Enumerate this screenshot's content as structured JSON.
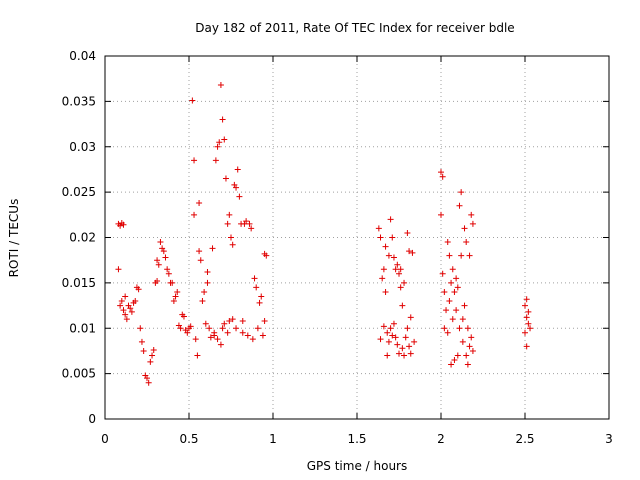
{
  "chart_data": {
    "type": "scatter",
    "title": "Day 182 of 2011, Rate Of TEC Index for receiver bdle",
    "xlabel": "GPS time / hours",
    "ylabel": "ROTI / TECUs",
    "xlim": [
      0,
      3
    ],
    "ylim": [
      0,
      0.04
    ],
    "x_ticks": [
      "0",
      "0.5",
      "1",
      "1.5",
      "2",
      "2.5",
      "3"
    ],
    "y_ticks": [
      "0",
      "0.005",
      "0.01",
      "0.015",
      "0.02",
      "0.025",
      "0.03",
      "0.035",
      "0.04"
    ],
    "x_tick_values": [
      0,
      0.5,
      1,
      1.5,
      2,
      2.5,
      3
    ],
    "y_tick_values": [
      0,
      0.005,
      0.01,
      0.015,
      0.02,
      0.025,
      0.03,
      0.035,
      0.04
    ],
    "grid": true,
    "marker": "+",
    "color": "#e00000",
    "series": [
      {
        "name": "ROTI",
        "points": [
          [
            0.08,
            0.0165
          ],
          [
            0.08,
            0.0215
          ],
          [
            0.09,
            0.0213
          ],
          [
            0.1,
            0.0216
          ],
          [
            0.11,
            0.0214
          ],
          [
            0.09,
            0.0125
          ],
          [
            0.1,
            0.013
          ],
          [
            0.11,
            0.012
          ],
          [
            0.12,
            0.0115
          ],
          [
            0.12,
            0.0135
          ],
          [
            0.13,
            0.011
          ],
          [
            0.14,
            0.0125
          ],
          [
            0.15,
            0.0122
          ],
          [
            0.16,
            0.0118
          ],
          [
            0.17,
            0.0128
          ],
          [
            0.18,
            0.013
          ],
          [
            0.19,
            0.0145
          ],
          [
            0.2,
            0.0143
          ],
          [
            0.21,
            0.01
          ],
          [
            0.22,
            0.0085
          ],
          [
            0.23,
            0.0075
          ],
          [
            0.24,
            0.0048
          ],
          [
            0.25,
            0.0045
          ],
          [
            0.26,
            0.004
          ],
          [
            0.27,
            0.0063
          ],
          [
            0.28,
            0.007
          ],
          [
            0.29,
            0.0076
          ],
          [
            0.3,
            0.015
          ],
          [
            0.31,
            0.0152
          ],
          [
            0.31,
            0.0175
          ],
          [
            0.32,
            0.017
          ],
          [
            0.33,
            0.0195
          ],
          [
            0.34,
            0.0188
          ],
          [
            0.35,
            0.0185
          ],
          [
            0.36,
            0.0178
          ],
          [
            0.37,
            0.0165
          ],
          [
            0.38,
            0.016
          ],
          [
            0.39,
            0.015
          ],
          [
            0.4,
            0.015
          ],
          [
            0.41,
            0.013
          ],
          [
            0.42,
            0.0135
          ],
          [
            0.43,
            0.014
          ],
          [
            0.44,
            0.0103
          ],
          [
            0.45,
            0.01
          ],
          [
            0.46,
            0.0115
          ],
          [
            0.47,
            0.0113
          ],
          [
            0.48,
            0.0098
          ],
          [
            0.49,
            0.0095
          ],
          [
            0.5,
            0.01
          ],
          [
            0.51,
            0.0102
          ],
          [
            0.52,
            0.0351
          ],
          [
            0.53,
            0.0285
          ],
          [
            0.53,
            0.0225
          ],
          [
            0.54,
            0.0088
          ],
          [
            0.55,
            0.007
          ],
          [
            0.56,
            0.0238
          ],
          [
            0.56,
            0.0185
          ],
          [
            0.57,
            0.0175
          ],
          [
            0.58,
            0.013
          ],
          [
            0.59,
            0.014
          ],
          [
            0.6,
            0.0105
          ],
          [
            0.61,
            0.0162
          ],
          [
            0.61,
            0.015
          ],
          [
            0.62,
            0.01
          ],
          [
            0.63,
            0.009
          ],
          [
            0.64,
            0.0188
          ],
          [
            0.65,
            0.0092
          ],
          [
            0.65,
            0.0095
          ],
          [
            0.66,
            0.0285
          ],
          [
            0.67,
            0.03
          ],
          [
            0.67,
            0.0088
          ],
          [
            0.68,
            0.0305
          ],
          [
            0.69,
            0.0368
          ],
          [
            0.69,
            0.0082
          ],
          [
            0.7,
            0.033
          ],
          [
            0.7,
            0.01
          ],
          [
            0.71,
            0.0308
          ],
          [
            0.71,
            0.0105
          ],
          [
            0.72,
            0.0265
          ],
          [
            0.73,
            0.0215
          ],
          [
            0.73,
            0.0095
          ],
          [
            0.74,
            0.0225
          ],
          [
            0.74,
            0.0108
          ],
          [
            0.75,
            0.02
          ],
          [
            0.76,
            0.0192
          ],
          [
            0.76,
            0.011
          ],
          [
            0.77,
            0.0258
          ],
          [
            0.78,
            0.0255
          ],
          [
            0.78,
            0.01
          ],
          [
            0.79,
            0.0275
          ],
          [
            0.8,
            0.0245
          ],
          [
            0.81,
            0.0215
          ],
          [
            0.82,
            0.0108
          ],
          [
            0.82,
            0.0095
          ],
          [
            0.83,
            0.0215
          ],
          [
            0.84,
            0.0218
          ],
          [
            0.85,
            0.0092
          ],
          [
            0.86,
            0.0215
          ],
          [
            0.87,
            0.021
          ],
          [
            0.88,
            0.0088
          ],
          [
            0.89,
            0.0155
          ],
          [
            0.9,
            0.0145
          ],
          [
            0.91,
            0.01
          ],
          [
            0.92,
            0.0128
          ],
          [
            0.93,
            0.0135
          ],
          [
            0.94,
            0.0092
          ],
          [
            0.95,
            0.0108
          ],
          [
            0.95,
            0.0182
          ],
          [
            0.96,
            0.018
          ],
          [
            1.63,
            0.021
          ],
          [
            1.64,
            0.02
          ],
          [
            1.64,
            0.0088
          ],
          [
            1.65,
            0.0155
          ],
          [
            1.66,
            0.0165
          ],
          [
            1.66,
            0.0102
          ],
          [
            1.67,
            0.019
          ],
          [
            1.67,
            0.014
          ],
          [
            1.68,
            0.0095
          ],
          [
            1.68,
            0.007
          ],
          [
            1.69,
            0.018
          ],
          [
            1.69,
            0.0085
          ],
          [
            1.7,
            0.022
          ],
          [
            1.7,
            0.01
          ],
          [
            1.71,
            0.02
          ],
          [
            1.71,
            0.0092
          ],
          [
            1.72,
            0.0178
          ],
          [
            1.72,
            0.0105
          ],
          [
            1.73,
            0.0165
          ],
          [
            1.73,
            0.009
          ],
          [
            1.74,
            0.017
          ],
          [
            1.74,
            0.0082
          ],
          [
            1.75,
            0.016
          ],
          [
            1.75,
            0.0072
          ],
          [
            1.76,
            0.0165
          ],
          [
            1.76,
            0.0145
          ],
          [
            1.77,
            0.0125
          ],
          [
            1.77,
            0.0078
          ],
          [
            1.78,
            0.015
          ],
          [
            1.78,
            0.007
          ],
          [
            1.79,
            0.009
          ],
          [
            1.8,
            0.0205
          ],
          [
            1.8,
            0.01
          ],
          [
            1.81,
            0.0185
          ],
          [
            1.81,
            0.008
          ],
          [
            1.82,
            0.0112
          ],
          [
            1.82,
            0.0072
          ],
          [
            1.83,
            0.0183
          ],
          [
            1.84,
            0.0085
          ],
          [
            2.0,
            0.0272
          ],
          [
            2.01,
            0.0267
          ],
          [
            2.0,
            0.0225
          ],
          [
            2.01,
            0.016
          ],
          [
            2.02,
            0.014
          ],
          [
            2.02,
            0.01
          ],
          [
            2.03,
            0.012
          ],
          [
            2.04,
            0.0195
          ],
          [
            2.04,
            0.0095
          ],
          [
            2.05,
            0.018
          ],
          [
            2.05,
            0.013
          ],
          [
            2.06,
            0.006
          ],
          [
            2.06,
            0.015
          ],
          [
            2.07,
            0.0165
          ],
          [
            2.07,
            0.011
          ],
          [
            2.08,
            0.0065
          ],
          [
            2.08,
            0.014
          ],
          [
            2.09,
            0.0155
          ],
          [
            2.09,
            0.012
          ],
          [
            2.1,
            0.0145
          ],
          [
            2.1,
            0.007
          ],
          [
            2.11,
            0.0235
          ],
          [
            2.11,
            0.01
          ],
          [
            2.12,
            0.025
          ],
          [
            2.12,
            0.018
          ],
          [
            2.13,
            0.011
          ],
          [
            2.13,
            0.0085
          ],
          [
            2.14,
            0.021
          ],
          [
            2.14,
            0.0125
          ],
          [
            2.15,
            0.007
          ],
          [
            2.15,
            0.0195
          ],
          [
            2.16,
            0.01
          ],
          [
            2.16,
            0.006
          ],
          [
            2.17,
            0.018
          ],
          [
            2.17,
            0.008
          ],
          [
            2.18,
            0.0225
          ],
          [
            2.18,
            0.009
          ],
          [
            2.19,
            0.0215
          ],
          [
            2.19,
            0.0075
          ],
          [
            2.5,
            0.0125
          ],
          [
            2.5,
            0.0095
          ],
          [
            2.51,
            0.0132
          ],
          [
            2.51,
            0.0112
          ],
          [
            2.51,
            0.008
          ],
          [
            2.52,
            0.0118
          ],
          [
            2.52,
            0.0105
          ],
          [
            2.53,
            0.01
          ]
        ]
      }
    ]
  }
}
